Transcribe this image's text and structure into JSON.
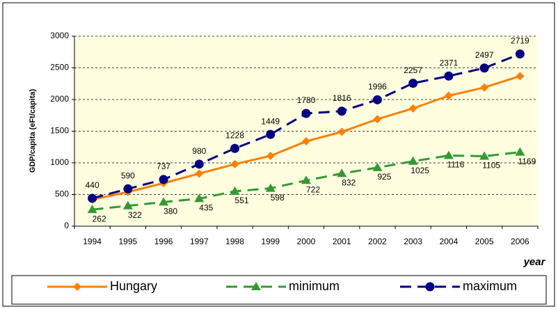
{
  "chart_data": {
    "type": "line",
    "x_label": "year",
    "y_label": "GDP/capita (eFt/capita)",
    "categories": [
      "1994",
      "1995",
      "1996",
      "1997",
      "1998",
      "1999",
      "2000",
      "2001",
      "2002",
      "2003",
      "2004",
      "2005",
      "2006"
    ],
    "series": [
      {
        "name": "Hungary",
        "color": "#ff8000",
        "marker": "diamond",
        "dashed": false,
        "labels": false,
        "values": [
          420,
          540,
          680,
          830,
          980,
          1110,
          1340,
          1490,
          1690,
          1860,
          2060,
          2190,
          2370
        ]
      },
      {
        "name": "minimum",
        "color": "#339933",
        "marker": "triangle",
        "dashed": true,
        "labels": "below",
        "values": [
          262,
          322,
          380,
          435,
          551,
          598,
          722,
          832,
          925,
          1025,
          1116,
          1105,
          1169
        ]
      },
      {
        "name": "maximum",
        "color": "#000080",
        "marker": "circle",
        "dashed": true,
        "labels": "above",
        "values": [
          440,
          590,
          737,
          980,
          1228,
          1449,
          1780,
          1816,
          1996,
          2257,
          2371,
          2497,
          2719
        ]
      }
    ],
    "ylim": [
      0,
      3000
    ],
    "yticks": [
      0,
      500,
      1000,
      1500,
      2000,
      2500,
      3000
    ],
    "grid": true,
    "legend": "bottom"
  }
}
